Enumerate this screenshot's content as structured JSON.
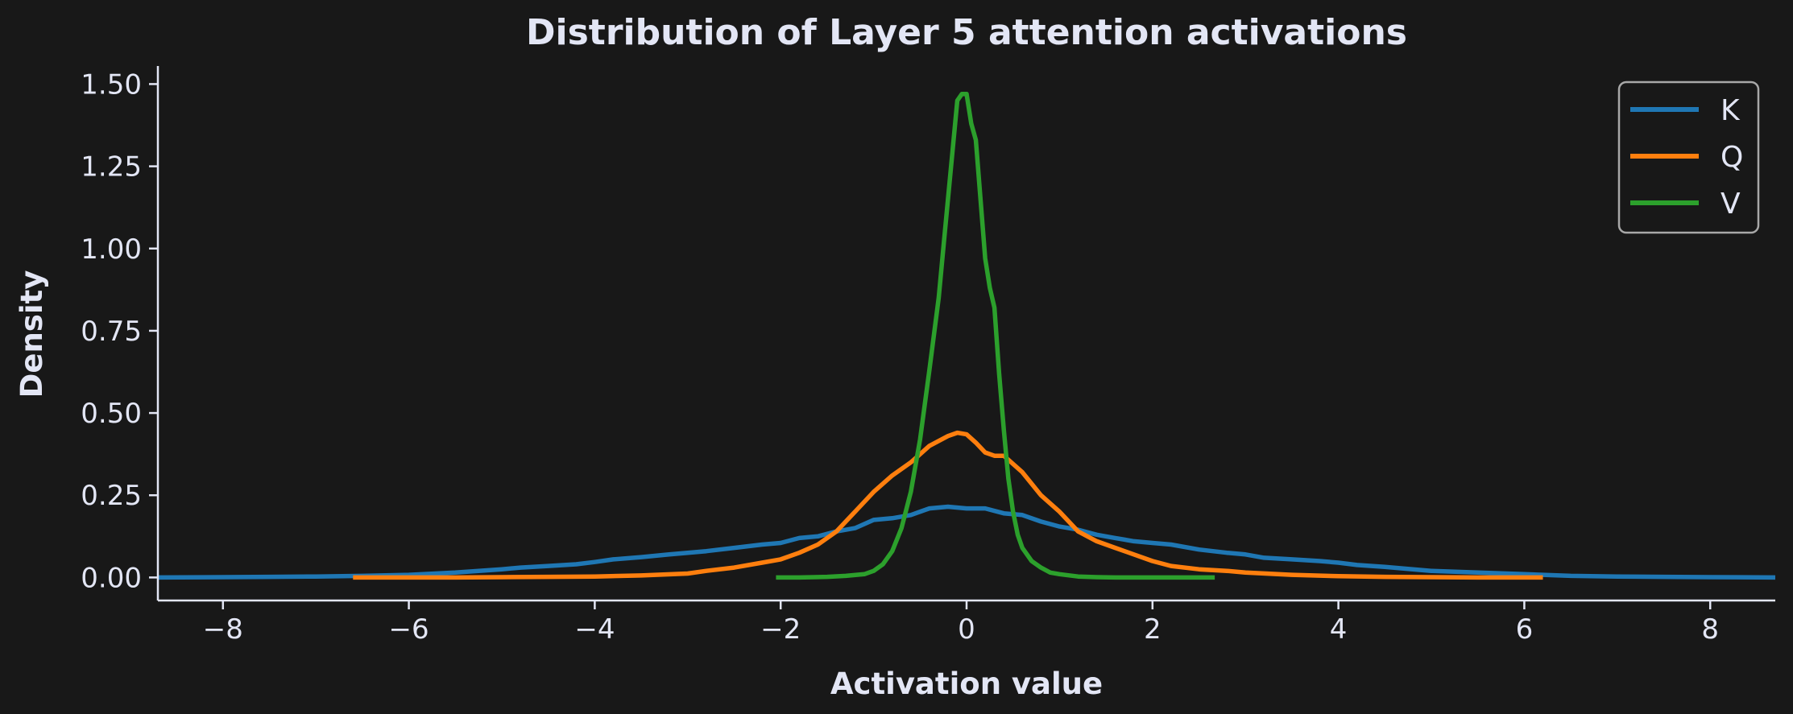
{
  "chart_data": {
    "type": "line",
    "title": "Distribution of Layer 5 attention activations",
    "xlabel": "Activation value",
    "ylabel": "Density",
    "xlim": [
      -8.7,
      8.7
    ],
    "ylim": [
      -0.07,
      1.55
    ],
    "xticks": [
      -8,
      -6,
      -4,
      -2,
      0,
      2,
      4,
      6,
      8
    ],
    "xtick_labels": [
      "−8",
      "−6",
      "−4",
      "−2",
      "0",
      "2",
      "4",
      "6",
      "8"
    ],
    "yticks": [
      0.0,
      0.25,
      0.5,
      0.75,
      1.0,
      1.25,
      1.5
    ],
    "ytick_labels": [
      "0.00",
      "0.25",
      "0.50",
      "0.75",
      "1.00",
      "1.25",
      "1.50"
    ],
    "grid": false,
    "legend_position": "top-right",
    "colors": {
      "background": "#181818",
      "text": "#e3e6f5",
      "axis": "#e3e6f5"
    },
    "series": [
      {
        "name": "K",
        "color": "#1f77b4",
        "x": [
          -8.7,
          -8.0,
          -7.5,
          -7.0,
          -6.5,
          -6.0,
          -5.5,
          -5.0,
          -4.8,
          -4.5,
          -4.2,
          -4.0,
          -3.8,
          -3.5,
          -3.2,
          -3.0,
          -2.8,
          -2.5,
          -2.2,
          -2.0,
          -1.8,
          -1.6,
          -1.4,
          -1.2,
          -1.0,
          -0.8,
          -0.6,
          -0.4,
          -0.2,
          0.0,
          0.2,
          0.4,
          0.6,
          0.8,
          1.0,
          1.2,
          1.4,
          1.6,
          1.8,
          2.0,
          2.2,
          2.5,
          2.8,
          3.0,
          3.2,
          3.5,
          3.8,
          4.0,
          4.2,
          4.5,
          4.8,
          5.0,
          5.5,
          6.0,
          6.5,
          7.0,
          7.5,
          8.0,
          8.7
        ],
        "y": [
          0.0,
          0.001,
          0.002,
          0.003,
          0.005,
          0.008,
          0.015,
          0.025,
          0.03,
          0.035,
          0.04,
          0.047,
          0.055,
          0.062,
          0.07,
          0.075,
          0.08,
          0.09,
          0.1,
          0.105,
          0.12,
          0.125,
          0.14,
          0.15,
          0.175,
          0.18,
          0.19,
          0.21,
          0.215,
          0.21,
          0.21,
          0.195,
          0.19,
          0.17,
          0.155,
          0.145,
          0.13,
          0.12,
          0.11,
          0.105,
          0.1,
          0.085,
          0.075,
          0.07,
          0.06,
          0.055,
          0.05,
          0.045,
          0.038,
          0.032,
          0.025,
          0.02,
          0.015,
          0.01,
          0.005,
          0.003,
          0.002,
          0.001,
          0.0
        ]
      },
      {
        "name": "Q",
        "color": "#ff7f0e",
        "x": [
          -6.6,
          -6.0,
          -5.5,
          -5.0,
          -4.5,
          -4.0,
          -3.5,
          -3.0,
          -2.8,
          -2.5,
          -2.2,
          -2.0,
          -1.8,
          -1.6,
          -1.4,
          -1.2,
          -1.0,
          -0.8,
          -0.6,
          -0.4,
          -0.2,
          -0.1,
          0.0,
          0.1,
          0.2,
          0.3,
          0.4,
          0.6,
          0.8,
          1.0,
          1.2,
          1.4,
          1.6,
          1.8,
          2.0,
          2.2,
          2.5,
          2.8,
          3.0,
          3.5,
          4.0,
          4.5,
          5.0,
          5.5,
          6.0,
          6.2
        ],
        "y": [
          0.0,
          0.0,
          0.0,
          0.001,
          0.002,
          0.003,
          0.006,
          0.012,
          0.02,
          0.03,
          0.045,
          0.055,
          0.075,
          0.1,
          0.14,
          0.2,
          0.26,
          0.31,
          0.35,
          0.4,
          0.43,
          0.44,
          0.435,
          0.41,
          0.38,
          0.37,
          0.37,
          0.32,
          0.25,
          0.2,
          0.14,
          0.11,
          0.09,
          0.07,
          0.05,
          0.035,
          0.025,
          0.02,
          0.015,
          0.008,
          0.004,
          0.002,
          0.001,
          0.0,
          0.0,
          0.0
        ]
      },
      {
        "name": "V",
        "color": "#2ca02c",
        "x": [
          -2.05,
          -1.8,
          -1.5,
          -1.3,
          -1.1,
          -1.0,
          -0.9,
          -0.8,
          -0.7,
          -0.6,
          -0.5,
          -0.4,
          -0.3,
          -0.25,
          -0.2,
          -0.15,
          -0.1,
          -0.05,
          0.0,
          0.05,
          0.1,
          0.15,
          0.2,
          0.25,
          0.3,
          0.35,
          0.4,
          0.45,
          0.5,
          0.55,
          0.6,
          0.7,
          0.8,
          0.9,
          1.0,
          1.2,
          1.4,
          1.6,
          2.0,
          2.67
        ],
        "y": [
          0.0,
          0.0,
          0.002,
          0.005,
          0.01,
          0.02,
          0.04,
          0.08,
          0.15,
          0.26,
          0.42,
          0.63,
          0.85,
          1.0,
          1.15,
          1.3,
          1.45,
          1.47,
          1.47,
          1.38,
          1.33,
          1.15,
          0.97,
          0.88,
          0.82,
          0.62,
          0.45,
          0.3,
          0.2,
          0.13,
          0.09,
          0.05,
          0.03,
          0.015,
          0.01,
          0.003,
          0.001,
          0.0,
          0.0,
          0.0
        ]
      }
    ]
  }
}
